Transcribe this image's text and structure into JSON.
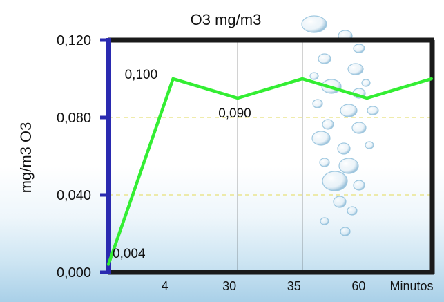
{
  "chart_data": {
    "type": "line",
    "title": "O3 mg/m3",
    "ylabel": "mg/m3  O3",
    "xlabel": "Minutos",
    "categories": [
      "",
      "4",
      "30",
      "35",
      "60",
      ""
    ],
    "y_ticks": [
      "0,000",
      "0,040",
      "0,080",
      "0,120"
    ],
    "ylim": [
      0,
      0.12
    ],
    "series": [
      {
        "values": [
          0.004,
          0.1,
          0.09,
          0.1,
          0.09,
          0.1
        ]
      }
    ],
    "data_labels": [
      {
        "index": 0,
        "text": "0,004"
      },
      {
        "index": 1,
        "text": "0,100"
      },
      {
        "index": 2,
        "text": "0,090"
      }
    ],
    "grid": {
      "horizontal": true,
      "vertical": true
    },
    "colors": {
      "line": "#33ee33",
      "y_axis": "#2a2ab0",
      "frame": "#1a1a1a",
      "grid_h": "#e8e07a",
      "grid_v": "#222222",
      "bubbles": "#7fb6d6"
    }
  }
}
